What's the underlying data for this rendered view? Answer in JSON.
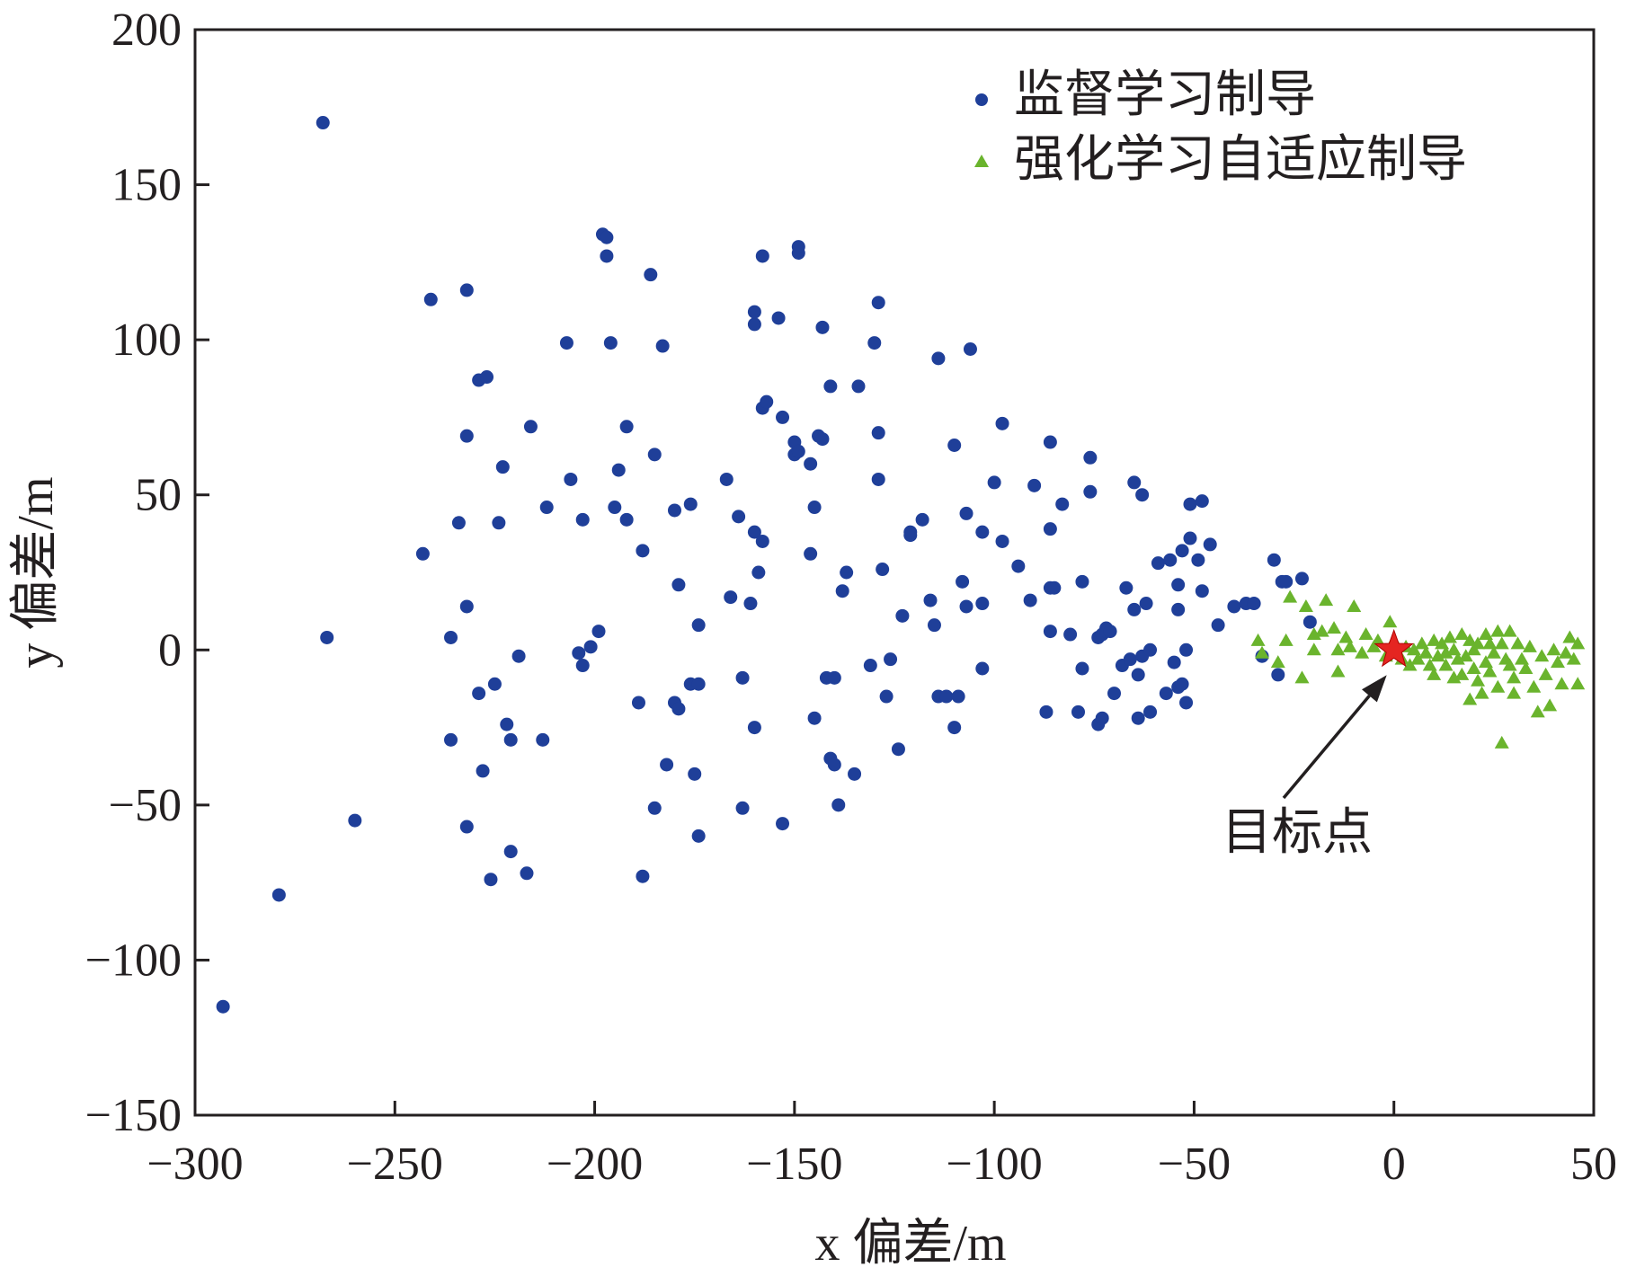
{
  "chart_data": {
    "type": "scatter",
    "xlabel": "x 偏差/m",
    "ylabel": "y 偏差/m",
    "xlim": [
      -300,
      50
    ],
    "ylim": [
      -150,
      200
    ],
    "xticks": [
      -300,
      -250,
      -200,
      -150,
      -100,
      -50,
      0,
      50
    ],
    "yticks": [
      -150,
      -100,
      -50,
      0,
      50,
      100,
      150,
      200
    ],
    "xtick_labels": [
      "−300",
      "−250",
      "−200",
      "−150",
      "−100",
      "−50",
      "0",
      "50"
    ],
    "ytick_labels": [
      "−150",
      "−100",
      "−50",
      "0",
      "50",
      "100",
      "150",
      "200"
    ],
    "grid": false,
    "legend_position": "top-right",
    "series": [
      {
        "name": "监督学习制导",
        "marker": "circle",
        "color": "#1f3f99",
        "points": [
          [
            -293,
            -115
          ],
          [
            -279,
            -79
          ],
          [
            -268,
            170
          ],
          [
            -267,
            4
          ],
          [
            -260,
            -55
          ],
          [
            -243,
            31
          ],
          [
            -241,
            113
          ],
          [
            -236,
            -29
          ],
          [
            -236,
            4
          ],
          [
            -234,
            41
          ],
          [
            -232,
            116
          ],
          [
            -232,
            69
          ],
          [
            -232,
            14
          ],
          [
            -232,
            -57
          ],
          [
            -229,
            -14
          ],
          [
            -228,
            -39
          ],
          [
            -229,
            87
          ],
          [
            -227,
            88
          ],
          [
            -226,
            -74
          ],
          [
            -225,
            -11
          ],
          [
            -224,
            41
          ],
          [
            -223,
            59
          ],
          [
            -222,
            -24
          ],
          [
            -221,
            -29
          ],
          [
            -221,
            -65
          ],
          [
            -219,
            -2
          ],
          [
            -217,
            -72
          ],
          [
            -216,
            72
          ],
          [
            -213,
            -29
          ],
          [
            -212,
            46
          ],
          [
            -207,
            99
          ],
          [
            -206,
            55
          ],
          [
            -204,
            -1
          ],
          [
            -203,
            42
          ],
          [
            -203,
            -5
          ],
          [
            -201,
            1
          ],
          [
            -199,
            6
          ],
          [
            -198,
            134
          ],
          [
            -197,
            133
          ],
          [
            -197,
            127
          ],
          [
            -196,
            99
          ],
          [
            -195,
            46
          ],
          [
            -194,
            58
          ],
          [
            -192,
            72
          ],
          [
            -192,
            42
          ],
          [
            -189,
            -17
          ],
          [
            -188,
            32
          ],
          [
            -188,
            -73
          ],
          [
            -186,
            121
          ],
          [
            -185,
            -51
          ],
          [
            -185,
            63
          ],
          [
            -183,
            98
          ],
          [
            -182,
            -37
          ],
          [
            -180,
            -17
          ],
          [
            -180,
            45
          ],
          [
            -179,
            21
          ],
          [
            -179,
            -19
          ],
          [
            -176,
            47
          ],
          [
            -176,
            -11
          ],
          [
            -175,
            -40
          ],
          [
            -174,
            -11
          ],
          [
            -174,
            8
          ],
          [
            -174,
            -60
          ],
          [
            -167,
            55
          ],
          [
            -166,
            17
          ],
          [
            -164,
            43
          ],
          [
            -163,
            -9
          ],
          [
            -163,
            -51
          ],
          [
            -161,
            15
          ],
          [
            -160,
            105
          ],
          [
            -160,
            109
          ],
          [
            -160,
            38
          ],
          [
            -159,
            25
          ],
          [
            -160,
            -25
          ],
          [
            -158,
            127
          ],
          [
            -158,
            78
          ],
          [
            -158,
            35
          ],
          [
            -157,
            80
          ],
          [
            -154,
            107
          ],
          [
            -153,
            -56
          ],
          [
            -153,
            75
          ],
          [
            -150,
            63
          ],
          [
            -150,
            67
          ],
          [
            -149,
            128
          ],
          [
            -149,
            130
          ],
          [
            -149,
            64
          ],
          [
            -146,
            60
          ],
          [
            -146,
            31
          ],
          [
            -145,
            -22
          ],
          [
            -145,
            46
          ],
          [
            -144,
            69
          ],
          [
            -143,
            104
          ],
          [
            -143,
            68
          ],
          [
            -142,
            -9
          ],
          [
            -141,
            85
          ],
          [
            -141,
            -35
          ],
          [
            -140,
            -9
          ],
          [
            -140,
            -37
          ],
          [
            -139,
            -50
          ],
          [
            -138,
            19
          ],
          [
            -137,
            25
          ],
          [
            -135,
            -40
          ],
          [
            -134,
            85
          ],
          [
            -131,
            -5
          ],
          [
            -130,
            99
          ],
          [
            -129,
            70
          ],
          [
            -129,
            112
          ],
          [
            -129,
            55
          ],
          [
            -128,
            26
          ],
          [
            -127,
            -15
          ],
          [
            -126,
            -3
          ],
          [
            -124,
            -32
          ],
          [
            -123,
            11
          ],
          [
            -121,
            37
          ],
          [
            -121,
            38
          ],
          [
            -118,
            42
          ],
          [
            -116,
            16
          ],
          [
            -115,
            8
          ],
          [
            -114,
            94
          ],
          [
            -114,
            -15
          ],
          [
            -112,
            -15
          ],
          [
            -110,
            -25
          ],
          [
            -110,
            66
          ],
          [
            -109,
            -15
          ],
          [
            -108,
            22
          ],
          [
            -107,
            44
          ],
          [
            -107,
            14
          ],
          [
            -106,
            97
          ],
          [
            -103,
            -6
          ],
          [
            -103,
            38
          ],
          [
            -103,
            15
          ],
          [
            -100,
            54
          ],
          [
            -98,
            35
          ],
          [
            -98,
            73
          ],
          [
            -94,
            27
          ],
          [
            -91,
            16
          ],
          [
            -90,
            53
          ],
          [
            -87,
            -20
          ],
          [
            -86,
            20
          ],
          [
            -86,
            39
          ],
          [
            -86,
            67
          ],
          [
            -86,
            6
          ],
          [
            -85,
            20
          ],
          [
            -83,
            47
          ],
          [
            -81,
            5
          ],
          [
            -79,
            -20
          ],
          [
            -78,
            22
          ],
          [
            -78,
            -6
          ],
          [
            -76,
            62
          ],
          [
            -76,
            51
          ],
          [
            -74,
            -24
          ],
          [
            -74,
            4
          ],
          [
            -73,
            -22
          ],
          [
            -73,
            5
          ],
          [
            -72,
            7
          ],
          [
            -72,
            7
          ],
          [
            -72,
            6
          ],
          [
            -71,
            6
          ],
          [
            -70,
            -14
          ],
          [
            -68,
            -5
          ],
          [
            -67,
            20
          ],
          [
            -66,
            -3
          ],
          [
            -65,
            54
          ],
          [
            -65,
            13
          ],
          [
            -64,
            -22
          ],
          [
            -64,
            -8
          ],
          [
            -63,
            -2
          ],
          [
            -63,
            50
          ],
          [
            -62,
            15
          ],
          [
            -61,
            0
          ],
          [
            -61,
            -20
          ],
          [
            -59,
            28
          ],
          [
            -57,
            -14
          ],
          [
            -56,
            29
          ],
          [
            -55,
            -4
          ],
          [
            -54,
            -12
          ],
          [
            -54,
            21
          ],
          [
            -54,
            13
          ],
          [
            -53,
            -11
          ],
          [
            -53,
            32
          ],
          [
            -52,
            0
          ],
          [
            -52,
            -17
          ],
          [
            -51,
            36
          ],
          [
            -51,
            47
          ],
          [
            -49,
            29
          ],
          [
            -48,
            19
          ],
          [
            -48,
            48
          ],
          [
            -46,
            34
          ],
          [
            -44,
            8
          ],
          [
            -40,
            14
          ],
          [
            -37,
            15
          ],
          [
            -35,
            15
          ],
          [
            -33,
            -2
          ],
          [
            -30,
            29
          ],
          [
            -29,
            -8
          ],
          [
            -28,
            22
          ],
          [
            -27,
            22
          ],
          [
            -23,
            23
          ],
          [
            -21,
            9
          ]
        ]
      },
      {
        "name": "强化学习自适应制导",
        "marker": "triangle",
        "color": "#6ab42d",
        "points": [
          [
            -34,
            3
          ],
          [
            -33,
            -1
          ],
          [
            -29,
            -4
          ],
          [
            -27,
            3
          ],
          [
            -26,
            17
          ],
          [
            -23,
            -9
          ],
          [
            -22,
            14
          ],
          [
            -20,
            5
          ],
          [
            -20,
            0
          ],
          [
            -18,
            6
          ],
          [
            -17,
            16
          ],
          [
            -15,
            7
          ],
          [
            -14,
            0
          ],
          [
            -14,
            -7
          ],
          [
            -12,
            4
          ],
          [
            -11,
            1
          ],
          [
            -10,
            14
          ],
          [
            -8,
            -1
          ],
          [
            -7,
            5
          ],
          [
            -5,
            1
          ],
          [
            -4,
            3
          ],
          [
            -2,
            -2
          ],
          [
            -1,
            9
          ],
          [
            0,
            3
          ],
          [
            1,
            -1
          ],
          [
            2,
            -3
          ],
          [
            3,
            1
          ],
          [
            4,
            -5
          ],
          [
            5,
            0
          ],
          [
            6,
            -3
          ],
          [
            7,
            2
          ],
          [
            8,
            -1
          ],
          [
            9,
            -5
          ],
          [
            10,
            3
          ],
          [
            10,
            -8
          ],
          [
            11,
            -2
          ],
          [
            12,
            2
          ],
          [
            13,
            -5
          ],
          [
            13,
            -1
          ],
          [
            14,
            4
          ],
          [
            15,
            -9
          ],
          [
            15,
            0
          ],
          [
            16,
            -3
          ],
          [
            17,
            5
          ],
          [
            17,
            -8
          ],
          [
            18,
            -2
          ],
          [
            19,
            3
          ],
          [
            19,
            -16
          ],
          [
            20,
            -6
          ],
          [
            20,
            0
          ],
          [
            21,
            2
          ],
          [
            21,
            -10
          ],
          [
            22,
            -14
          ],
          [
            23,
            5
          ],
          [
            23,
            -4
          ],
          [
            24,
            -7
          ],
          [
            24,
            2
          ],
          [
            25,
            -1
          ],
          [
            26,
            -12
          ],
          [
            26,
            6
          ],
          [
            27,
            -30
          ],
          [
            27,
            2
          ],
          [
            28,
            -3
          ],
          [
            29,
            -5
          ],
          [
            29,
            6
          ],
          [
            30,
            -14
          ],
          [
            30,
            -9
          ],
          [
            31,
            2
          ],
          [
            32,
            -3
          ],
          [
            33,
            -6
          ],
          [
            34,
            1
          ],
          [
            35,
            -12
          ],
          [
            36,
            -20
          ],
          [
            37,
            -2
          ],
          [
            38,
            -8
          ],
          [
            39,
            -18
          ],
          [
            40,
            0
          ],
          [
            41,
            -4
          ],
          [
            42,
            -11
          ],
          [
            43,
            -1
          ],
          [
            44,
            4
          ],
          [
            45,
            -3
          ],
          [
            46,
            -11
          ],
          [
            46,
            2
          ]
        ]
      }
    ],
    "annotation": {
      "text": "目标点",
      "point": [
        0,
        0
      ],
      "marker": "star",
      "color": "#e52521"
    }
  }
}
